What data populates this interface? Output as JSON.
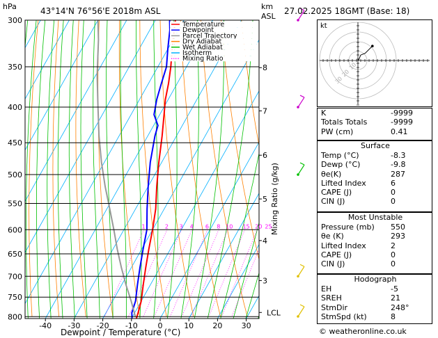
{
  "header": {
    "units": "hPa",
    "location": "43°14'N  76°56'E  2018m  ASL",
    "km_label": "km",
    "asl_label": "ASL",
    "datetime": "27.02.2025  18GMT  (Base: 18)"
  },
  "chart_data": {
    "type": "line",
    "title": "Skew-T log-P diagram",
    "xlabel": "Dewpoint / Temperature (°C)",
    "ylabel": "hPa",
    "right_axis_label": "Mixing Ratio (g/kg)",
    "x_ticks": [
      "-40",
      "-30",
      "-20",
      "-10",
      "0",
      "10",
      "20",
      "30"
    ],
    "x_tick_values": [
      -40,
      -30,
      -20,
      -10,
      0,
      10,
      20,
      30
    ],
    "pressure_levels": [
      "300",
      "350",
      "400",
      "450",
      "500",
      "550",
      "600",
      "650",
      "700",
      "750",
      "800"
    ],
    "pressure_values": [
      300,
      350,
      400,
      450,
      500,
      550,
      600,
      650,
      700,
      750,
      800
    ],
    "km_ticks": [
      {
        "p": 351,
        "label": "8"
      },
      {
        "p": 405,
        "label": "7"
      },
      {
        "p": 469,
        "label": "6"
      },
      {
        "p": 542,
        "label": "5"
      },
      {
        "p": 622,
        "label": "4"
      },
      {
        "p": 710,
        "label": "3"
      },
      {
        "p": 789,
        "label": "LCL"
      }
    ],
    "mixing_ratio_labels": [
      "1",
      "2",
      "3",
      "4",
      "6",
      "8",
      "10",
      "15",
      "20",
      "25"
    ],
    "mixing_ratio_values": [
      1,
      2,
      3,
      4,
      6,
      8,
      10,
      15,
      20,
      25
    ],
    "legend": [
      {
        "name": "Temperature",
        "color": "#ff0000",
        "style": "solid"
      },
      {
        "name": "Dewpoint",
        "color": "#0000ff",
        "style": "solid"
      },
      {
        "name": "Parcel Trajectory",
        "color": "#999999",
        "style": "solid"
      },
      {
        "name": "Dry Adiabat",
        "color": "#ff8000",
        "style": "solid"
      },
      {
        "name": "Wet Adiabat",
        "color": "#00c000",
        "style": "solid"
      },
      {
        "name": "Isotherm",
        "color": "#00b0ff",
        "style": "solid"
      },
      {
        "name": "Mixing Ratio",
        "color": "#ff00ff",
        "style": "dotted"
      }
    ],
    "series": [
      {
        "name": "Temperature",
        "color": "#ff0000",
        "p": [
          805,
          790,
          760,
          720,
          680,
          640,
          600,
          560,
          520,
          480,
          440,
          410,
          390,
          370,
          350,
          330,
          310,
          300
        ],
        "t": [
          -8.3,
          -8.8,
          -10,
          -12.5,
          -15,
          -17.5,
          -20,
          -23,
          -27,
          -31,
          -35,
          -38.5,
          -41,
          -43,
          -45.5,
          -48.5,
          -51.5,
          -53
        ]
      },
      {
        "name": "Dewpoint",
        "color": "#0000ff",
        "p": [
          805,
          790,
          760,
          720,
          680,
          640,
          600,
          560,
          520,
          480,
          440,
          425,
          410,
          390,
          370,
          350,
          330,
          310,
          300
        ],
        "t": [
          -9.8,
          -11,
          -12,
          -14.5,
          -17,
          -19.5,
          -22,
          -26,
          -30,
          -34,
          -37.5,
          -38.5,
          -42,
          -44,
          -45.5,
          -47,
          -50,
          -53,
          -55
        ]
      },
      {
        "name": "Parcel Trajectory",
        "color": "#999999",
        "p": [
          800,
          760,
          720,
          680,
          640,
          600,
          560,
          520,
          480,
          440,
          400,
          360,
          320,
          300
        ],
        "t": [
          -9,
          -13.5,
          -18.5,
          -23.5,
          -28.5,
          -33.5,
          -39,
          -45,
          -51,
          -57,
          -63,
          -69.5,
          -76,
          -80
        ]
      }
    ]
  },
  "wind_barbs": [
    {
      "p": 300,
      "color": "#cc00cc"
    },
    {
      "p": 400,
      "color": "#cc00cc"
    },
    {
      "p": 500,
      "color": "#00c000"
    },
    {
      "p": 700,
      "color": "#e0c000"
    },
    {
      "p": 800,
      "color": "#e0c000"
    }
  ],
  "hodograph": {
    "label": "kt",
    "ring_labels": [
      "10",
      "20",
      "30"
    ],
    "trace": [
      [
        0,
        0
      ],
      [
        1,
        1
      ],
      [
        3,
        6
      ],
      [
        8,
        8
      ],
      [
        16,
        16
      ]
    ]
  },
  "indices": {
    "k_label": "K",
    "k_value": "-9999",
    "tt_label": "Totals Totals",
    "tt_value": "-9999",
    "pw_label": "PW (cm)",
    "pw_value": "0.41"
  },
  "surface": {
    "title": "Surface",
    "rows": [
      {
        "label": "Temp (°C)",
        "value": "-8.3"
      },
      {
        "label": "Dewp (°C)",
        "value": "-9.8"
      },
      {
        "label": "θe(K)",
        "value": "287"
      },
      {
        "label": "Lifted Index",
        "value": "6"
      },
      {
        "label": "CAPE (J)",
        "value": "0"
      },
      {
        "label": "CIN (J)",
        "value": "0"
      }
    ]
  },
  "most_unstable": {
    "title": "Most Unstable",
    "rows": [
      {
        "label": "Pressure (mb)",
        "value": "550"
      },
      {
        "label": "θe (K)",
        "value": "293"
      },
      {
        "label": "Lifted Index",
        "value": "2"
      },
      {
        "label": "CAPE (J)",
        "value": "0"
      },
      {
        "label": "CIN (J)",
        "value": "0"
      }
    ]
  },
  "hodo_table": {
    "title": "Hodograph",
    "rows": [
      {
        "label": "EH",
        "value": "-5"
      },
      {
        "label": "SREH",
        "value": "21"
      },
      {
        "label": "StmDir",
        "value": "248°"
      },
      {
        "label": "StmSpd (kt)",
        "value": "8"
      }
    ]
  },
  "footer": {
    "copyright": "© weatheronline.co.uk"
  }
}
